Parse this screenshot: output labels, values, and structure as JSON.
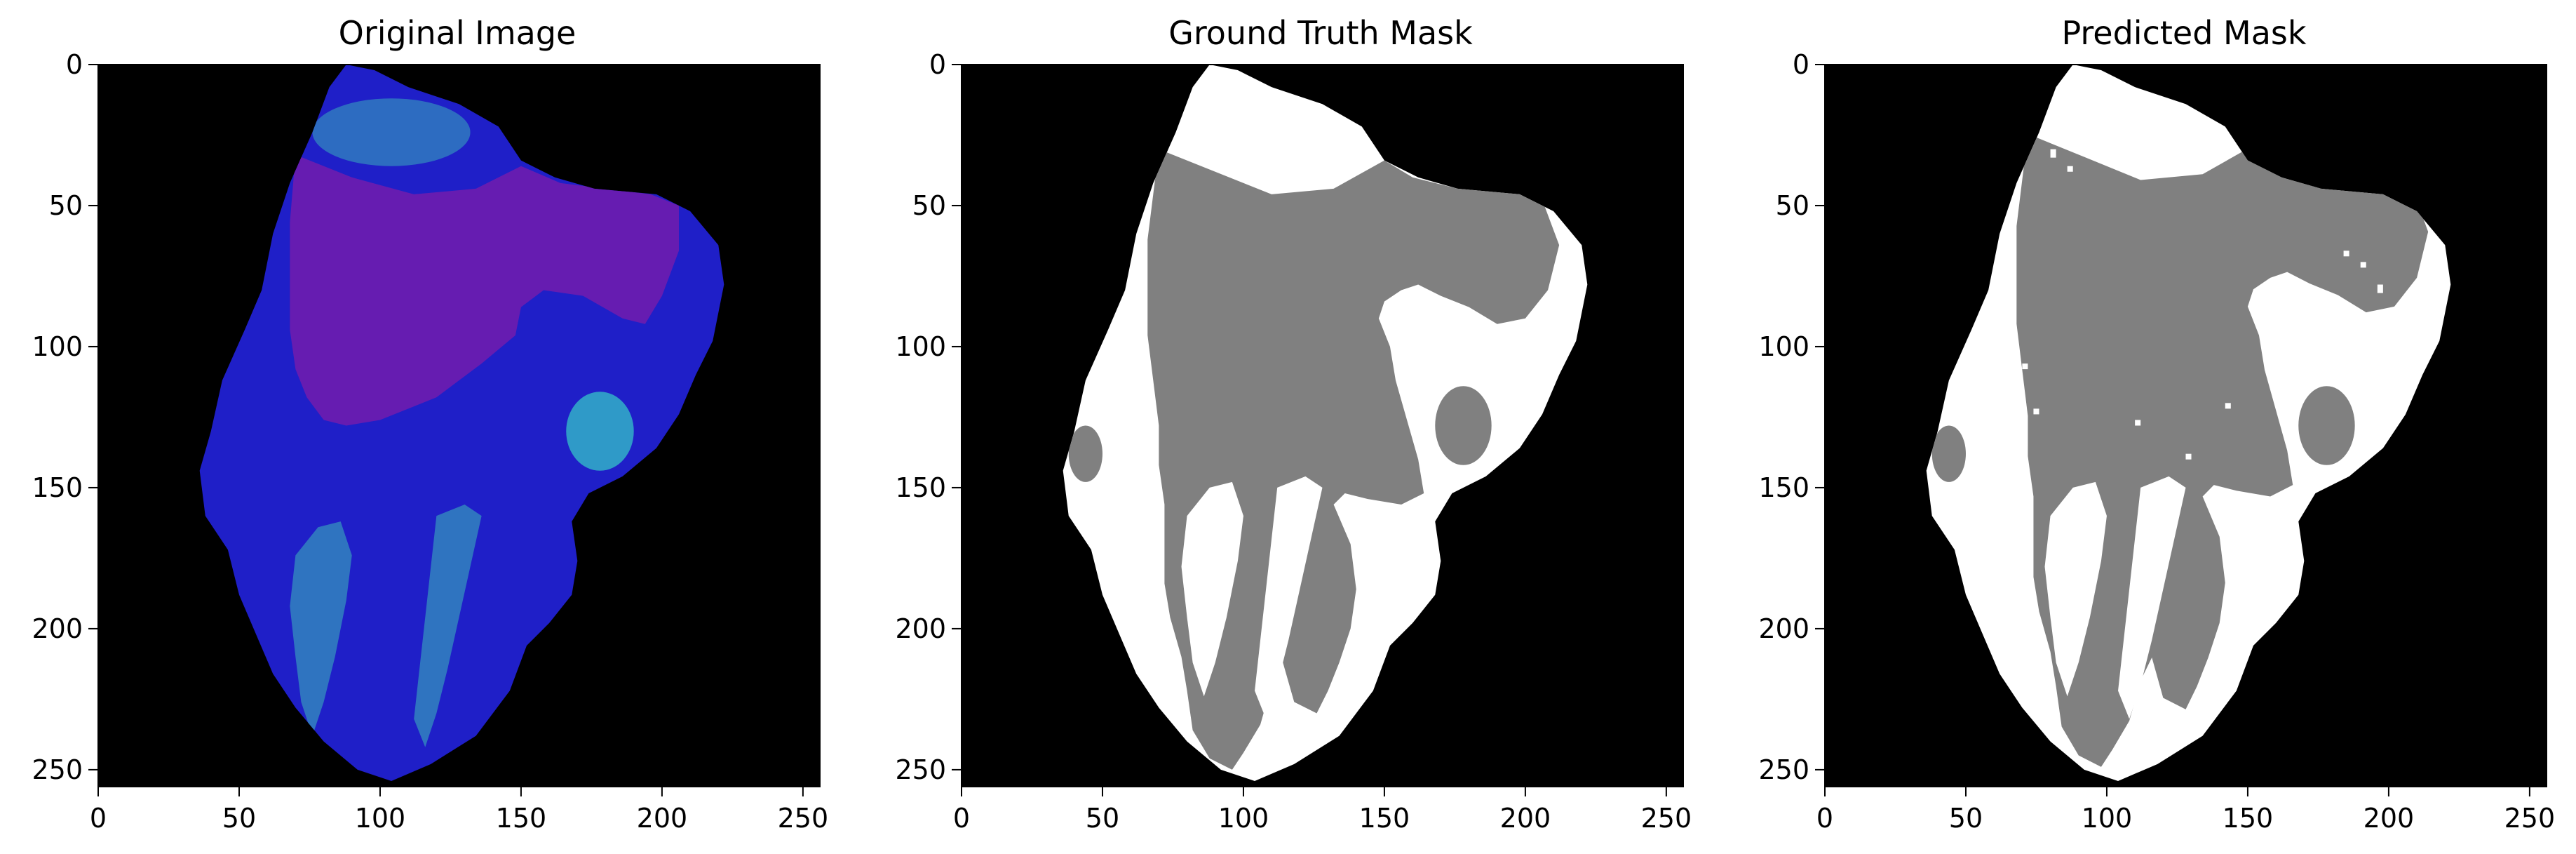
{
  "figure": {
    "panels": [
      {
        "title": "Original Image",
        "kind": "image",
        "x_ticks": [
          "0",
          "50",
          "100",
          "150",
          "200",
          "250"
        ],
        "y_ticks": [
          "0",
          "50",
          "100",
          "150",
          "200",
          "250"
        ],
        "x_tick_values": [
          0,
          50,
          100,
          150,
          200,
          250
        ],
        "y_tick_values": [
          0,
          50,
          100,
          150,
          200,
          250
        ],
        "extent": [
          0,
          256
        ],
        "colors": {
          "background": "#000000",
          "tissue": "#1f1fc8",
          "purple_region": "#6a1cb0",
          "teal_region": "#2f74c0"
        }
      },
      {
        "title": "Ground Truth Mask",
        "kind": "mask",
        "x_ticks": [
          "0",
          "50",
          "100",
          "150",
          "200",
          "250"
        ],
        "y_ticks": [
          "0",
          "50",
          "100",
          "150",
          "200",
          "250"
        ],
        "x_tick_values": [
          0,
          50,
          100,
          150,
          200,
          250
        ],
        "y_tick_values": [
          0,
          50,
          100,
          150,
          200,
          250
        ],
        "extent": [
          0,
          256
        ],
        "colors": {
          "background": "#000000",
          "foreground": "#ffffff",
          "class_gray": "#808080"
        }
      },
      {
        "title": "Predicted Mask",
        "kind": "mask",
        "x_ticks": [
          "0",
          "50",
          "100",
          "150",
          "200",
          "250"
        ],
        "y_ticks": [
          "0",
          "50",
          "100",
          "150",
          "200",
          "250"
        ],
        "x_tick_values": [
          0,
          50,
          100,
          150,
          200,
          250
        ],
        "y_tick_values": [
          0,
          50,
          100,
          150,
          200,
          250
        ],
        "extent": [
          0,
          256
        ],
        "colors": {
          "background": "#000000",
          "foreground": "#ffffff",
          "class_gray": "#808080"
        }
      }
    ]
  }
}
